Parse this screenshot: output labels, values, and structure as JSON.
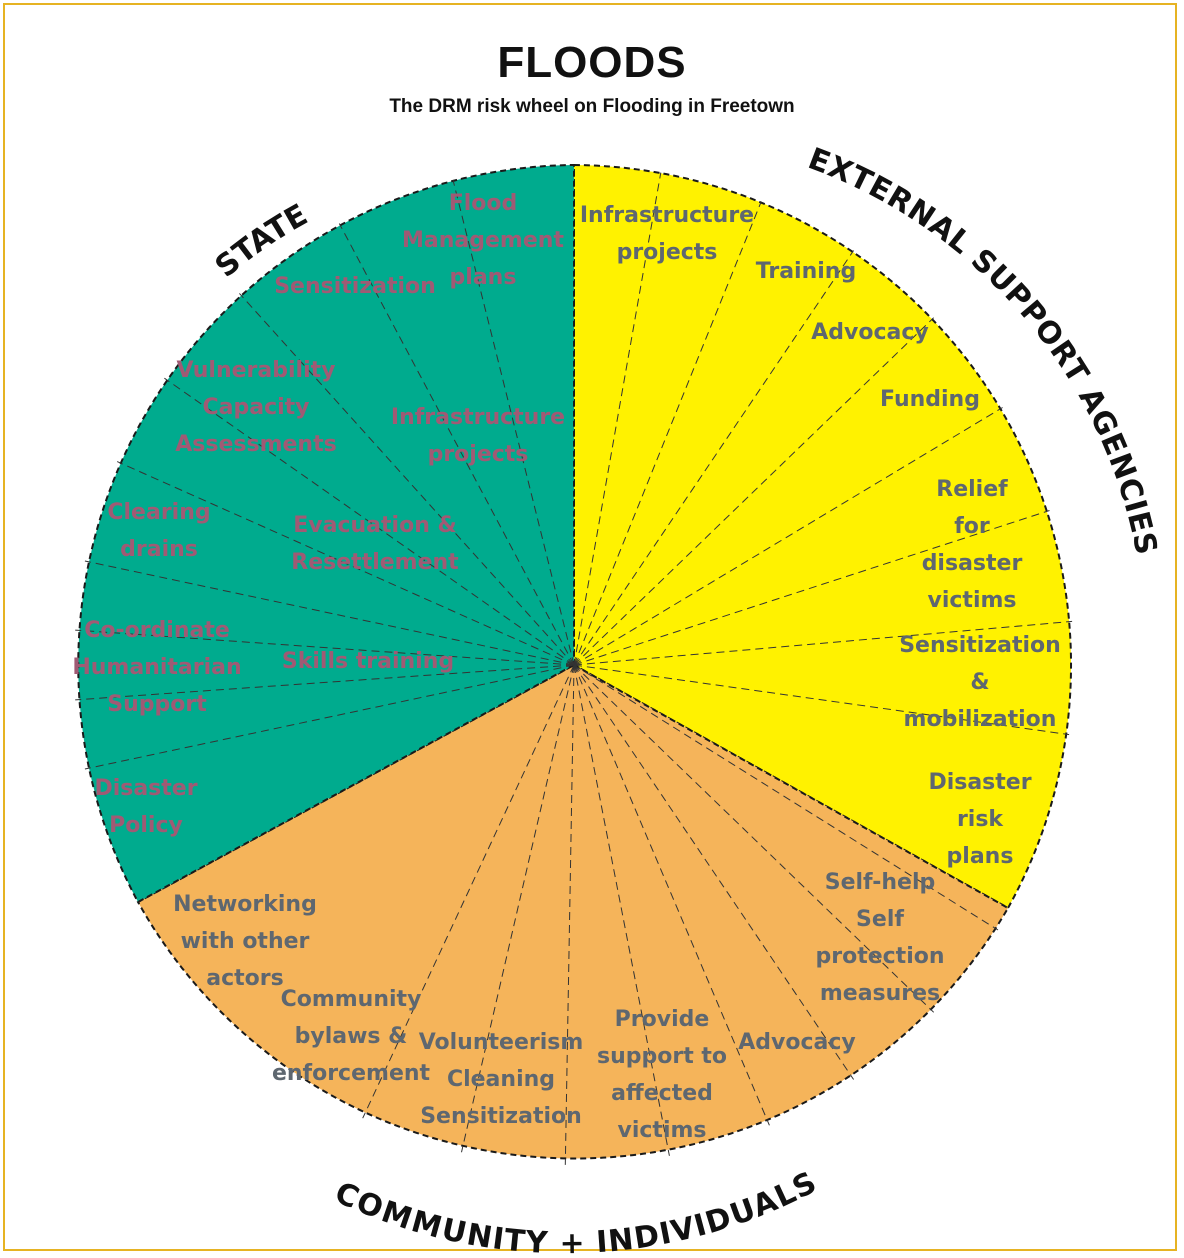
{
  "title": "FLOODS",
  "subtitle": "The DRM risk wheel on Flooding in Freetown",
  "colors": {
    "state": "#00ab8e",
    "external": "#fff200",
    "community": "#f5b45a",
    "state_text": "#a05a74",
    "other_text": "#5e6770",
    "frame": "#e6b323"
  },
  "sectors": {
    "state": {
      "name": "STATE",
      "items": [
        "Flood Management plans",
        "Sensitization",
        "Infrastructure projects",
        "Vulnerability Capacity Assessments",
        "Evacuation & Resettlement",
        "Clearing drains",
        "Skills training",
        "Co-ordinate Humanitarian Support",
        "Disaster Policy"
      ]
    },
    "external": {
      "name": "EXTERNAL SUPPORT AGENCIES",
      "items": [
        "Infrastructure projects",
        "Training",
        "Advocacy",
        "Funding",
        "Relief for disaster victims",
        "Sensitization & mobilization",
        "Disaster risk plans"
      ]
    },
    "community": {
      "name": "COMMUNITY + INDIVIDUALS",
      "items": [
        "Self-help Self protection measures",
        "Advocacy",
        "Provide support to affected victims",
        "Volunteerism Cleaning Sensitization",
        "Community bylaws & enforcement",
        "Networking with other actors"
      ]
    }
  }
}
